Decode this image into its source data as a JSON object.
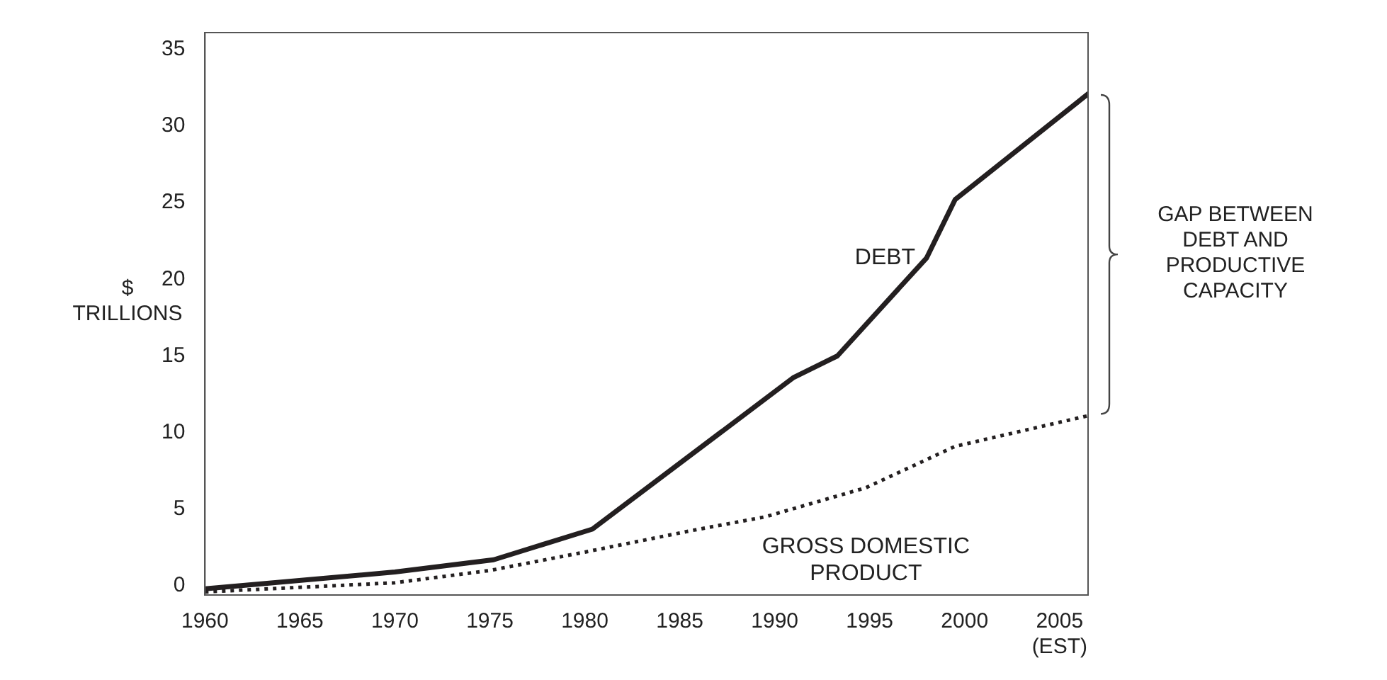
{
  "chart_data": {
    "type": "line",
    "ylabel": "$ TRILLIONS",
    "xlim": [
      1960,
      2006.5
    ],
    "ylim": [
      -0.6,
      36.1
    ],
    "xticks": [
      1960,
      1965,
      1970,
      1975,
      1980,
      1985,
      1990,
      1995,
      2000,
      {
        "value": 2005,
        "label": "2005 (EST)"
      }
    ],
    "yticks": [
      0,
      5,
      10,
      15,
      20,
      25,
      30,
      35
    ],
    "grid": false,
    "legend": false,
    "marker": "none",
    "series": [
      {
        "name": "DEBT",
        "color": "#231f20",
        "line_style": "solid",
        "x": [
          1960,
          1970,
          1975.2,
          1980.4,
          1991,
          1993.3,
          1998,
          1999.5,
          2006.5
        ],
        "values": [
          -0.2,
          0.9,
          1.7,
          3.7,
          13.6,
          15.0,
          21.4,
          25.2,
          32.1
        ]
      },
      {
        "name": "GROSS DOMESTIC PRODUCT",
        "color": "#231f20",
        "line_style": "dotted",
        "x": [
          1960,
          1970,
          1975,
          1980,
          1985.6,
          1989.5,
          1994.8,
          1999.5,
          2006.5
        ],
        "values": [
          -0.4,
          0.2,
          1.0,
          2.2,
          3.6,
          4.5,
          6.4,
          9.1,
          11.1
        ]
      }
    ],
    "annotations": [
      "GAP BETWEEN DEBT AND PRODUCTIVE CAPACITY"
    ]
  }
}
